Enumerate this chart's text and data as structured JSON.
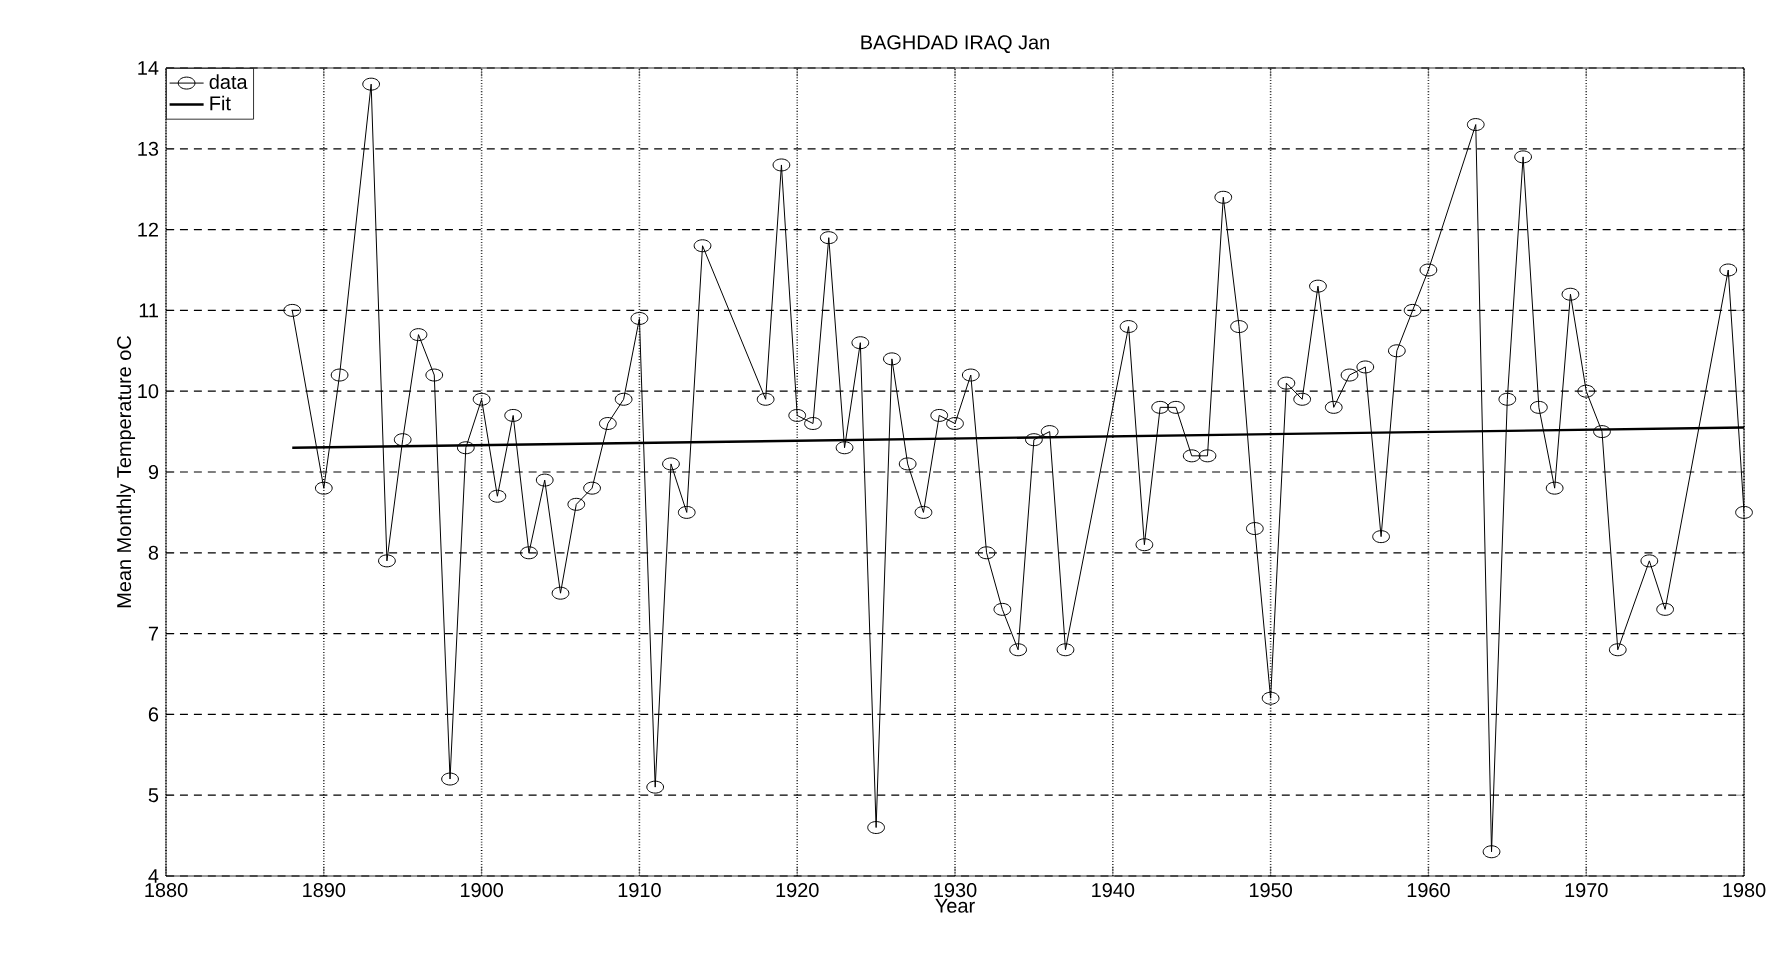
{
  "chart_data": {
    "type": "line",
    "title": "BAGHDAD  IRAQ  Jan",
    "xlabel": "Year",
    "ylabel": "Mean Monthly Temperature oC",
    "xlim": [
      1880,
      1980
    ],
    "xticks": [
      1880,
      1890,
      1900,
      1910,
      1920,
      1930,
      1940,
      1950,
      1960,
      1970,
      1980
    ],
    "ylim": [
      4,
      14
    ],
    "yticks": [
      4,
      5,
      6,
      7,
      8,
      9,
      10,
      11,
      12,
      13,
      14
    ],
    "grid": true,
    "legend": "top left",
    "series": [
      {
        "name": "data",
        "color": "#000000",
        "marker": "circle",
        "x": [
          1888,
          1890,
          1891,
          1893,
          1894,
          1895,
          1896,
          1897,
          1898,
          1899,
          1900,
          1901,
          1902,
          1903,
          1904,
          1905,
          1906,
          1907,
          1908,
          1909,
          1910,
          1911,
          1912,
          1913,
          1914,
          1918,
          1919,
          1920,
          1921,
          1922,
          1923,
          1924,
          1925,
          1926,
          1927,
          1928,
          1929,
          1930,
          1931,
          1932,
          1933,
          1934,
          1935,
          1936,
          1937,
          1941,
          1942,
          1943,
          1944,
          1945,
          1946,
          1947,
          1948,
          1949,
          1950,
          1951,
          1952,
          1953,
          1954,
          1955,
          1956,
          1957,
          1958,
          1959,
          1960,
          1963,
          1964,
          1965,
          1966,
          1967,
          1968,
          1969,
          1970,
          1971,
          1972,
          1974,
          1975,
          1979,
          1980
        ],
        "values": [
          11.0,
          8.8,
          10.2,
          13.8,
          7.9,
          9.4,
          10.7,
          10.2,
          5.2,
          9.3,
          9.9,
          8.7,
          9.7,
          8.0,
          8.9,
          7.5,
          8.6,
          8.8,
          9.6,
          9.9,
          10.9,
          5.1,
          9.1,
          8.5,
          11.8,
          9.9,
          12.8,
          9.7,
          9.6,
          11.9,
          9.3,
          10.6,
          4.6,
          10.4,
          9.1,
          8.5,
          9.7,
          9.6,
          10.2,
          8.0,
          7.3,
          6.8,
          9.4,
          9.5,
          6.8,
          10.8,
          8.1,
          9.8,
          9.8,
          9.2,
          9.2,
          12.4,
          10.8,
          8.3,
          6.2,
          10.1,
          9.9,
          11.3,
          9.8,
          10.2,
          10.3,
          8.2,
          10.5,
          11.0,
          11.5,
          13.3,
          4.3,
          9.9,
          12.9,
          9.8,
          8.8,
          11.2,
          10.0,
          9.5,
          6.8,
          7.9,
          7.3,
          11.5,
          8.5
        ]
      },
      {
        "name": "Fit",
        "color": "#000000",
        "marker": "none",
        "x": [
          1888,
          1980
        ],
        "values": [
          9.3,
          9.55
        ]
      }
    ]
  }
}
